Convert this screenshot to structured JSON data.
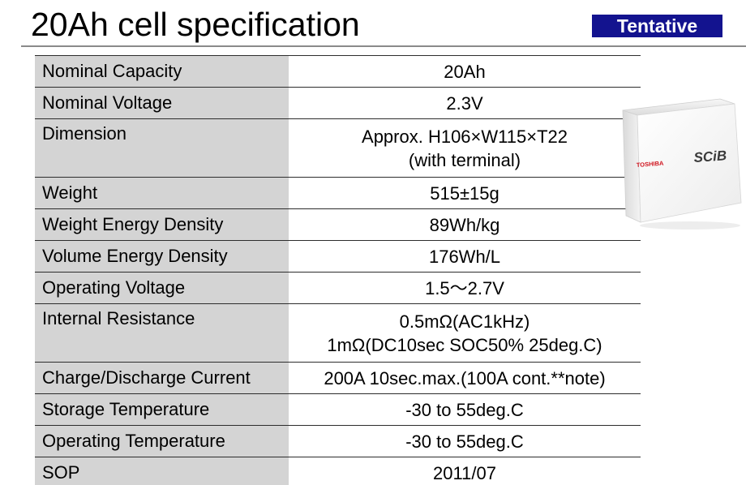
{
  "title": "20Ah cell specification",
  "badge": "Tentative",
  "product": {
    "brand": "TOSHIBA",
    "model": "SCiB"
  },
  "spec_rows": [
    {
      "label": "Nominal Capacity",
      "value": [
        "20Ah"
      ]
    },
    {
      "label": "Nominal Voltage",
      "value": [
        "2.3V"
      ]
    },
    {
      "label": "Dimension",
      "value": [
        "Approx. H106×W115×T22",
        "(with terminal)"
      ]
    },
    {
      "label": "Weight",
      "value": [
        "515±15g"
      ]
    },
    {
      "label": "Weight Energy Density",
      "value": [
        "89Wh/kg"
      ]
    },
    {
      "label": "Volume Energy Density",
      "value": [
        "176Wh/L"
      ]
    },
    {
      "label": "Operating Voltage",
      "value": [
        "1.5～2.7V"
      ]
    },
    {
      "label": "Internal Resistance",
      "value": [
        "0.5mΩ(AC1kHz)",
        "1mΩ(DC10sec SOC50% 25deg.C)"
      ]
    },
    {
      "label": "Charge/Discharge Current",
      "value": [
        "200A 10sec.max.(100A cont.**note)"
      ]
    },
    {
      "label": "Storage Temperature",
      "value": [
        "-30 to 55deg.C"
      ]
    },
    {
      "label": "Operating Temperature",
      "value": [
        "-30 to 55deg.C"
      ]
    },
    {
      "label": "SOP",
      "value": [
        "2011/07"
      ]
    }
  ],
  "colors": {
    "badge_bg": "#13138f",
    "label_bg": "#d4d4d4",
    "brand_red": "#d0141e"
  }
}
